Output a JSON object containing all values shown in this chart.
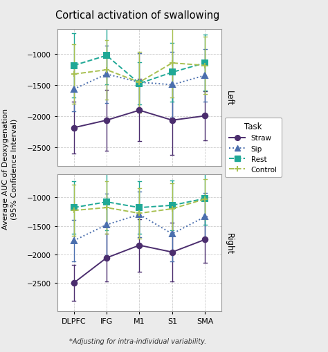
{
  "title": "Cortical activation of swallowing",
  "ylabel": "Average AUC of Deoxygenation\n(95% Confidence Interval)",
  "footnote": "*Adjusting for intra-individual variability.",
  "regions": [
    "DLPFC",
    "IFG",
    "M1",
    "S1",
    "SMA"
  ],
  "tasks": [
    "Straw",
    "Sip",
    "Rest",
    "Control"
  ],
  "task_colors": [
    "#4B2D6E",
    "#4B6FAE",
    "#1FA896",
    "#A8C050"
  ],
  "task_markers": [
    "o",
    "^",
    "s",
    "+"
  ],
  "task_linestyles": [
    "-",
    ":",
    "--",
    "--"
  ],
  "left": {
    "straw_y": [
      -2180,
      -2060,
      -1900,
      -2060,
      -1990
    ],
    "straw_lo": [
      -2600,
      -2550,
      -2400,
      -2620,
      -2380
    ],
    "straw_hi": [
      -1760,
      -1570,
      -1400,
      -1500,
      -1600
    ],
    "sip_y": [
      -1560,
      -1320,
      -1450,
      -1490,
      -1340
    ],
    "sip_lo": [
      -1920,
      -1780,
      -1920,
      -2020,
      -1760
    ],
    "sip_hi": [
      -1200,
      -860,
      -980,
      -960,
      -920
    ],
    "rest_y": [
      -1180,
      -1020,
      -1470,
      -1290,
      -1140
    ],
    "rest_lo": [
      -1700,
      -1480,
      -1810,
      -1760,
      -1590
    ],
    "rest_hi": [
      -660,
      -560,
      -1130,
      -820,
      -690
    ],
    "control_y": [
      -1320,
      -1250,
      -1450,
      -1140,
      -1180
    ],
    "control_lo": [
      -1800,
      -1730,
      -1940,
      -1700,
      -1640
    ],
    "control_hi": [
      -840,
      -770,
      -960,
      -580,
      -720
    ],
    "ylim": [
      -2800,
      -600
    ],
    "yticks": [
      -2500,
      -2000,
      -1500,
      -1000
    ]
  },
  "right": {
    "straw_y": [
      -2500,
      -2060,
      -1840,
      -1960,
      -1740
    ],
    "straw_lo": [
      -2820,
      -2480,
      -2300,
      -2480,
      -2150
    ],
    "straw_hi": [
      -2180,
      -1640,
      -1380,
      -1440,
      -1330
    ],
    "sip_y": [
      -1760,
      -1480,
      -1300,
      -1640,
      -1340
    ],
    "sip_lo": [
      -2120,
      -2020,
      -1700,
      -2120,
      -1760
    ],
    "sip_hi": [
      -1400,
      -940,
      -900,
      -1160,
      -920
    ],
    "rest_y": [
      -1180,
      -1080,
      -1180,
      -1140,
      -1020
    ],
    "rest_lo": [
      -1640,
      -1580,
      -1640,
      -1580,
      -1480
    ],
    "rest_hi": [
      -720,
      -580,
      -720,
      -700,
      -560
    ],
    "control_y": [
      -1230,
      -1180,
      -1280,
      -1200,
      -1030
    ],
    "control_lo": [
      -1680,
      -1640,
      -1720,
      -1640,
      -1380
    ],
    "control_hi": [
      -780,
      -720,
      -840,
      -760,
      -680
    ],
    "ylim": [
      -3000,
      -600
    ],
    "yticks": [
      -2500,
      -2000,
      -1500,
      -1000
    ]
  },
  "background_color": "#EBEBEB",
  "panel_bg": "#FFFFFF",
  "grid_color": "#CCCCCC"
}
